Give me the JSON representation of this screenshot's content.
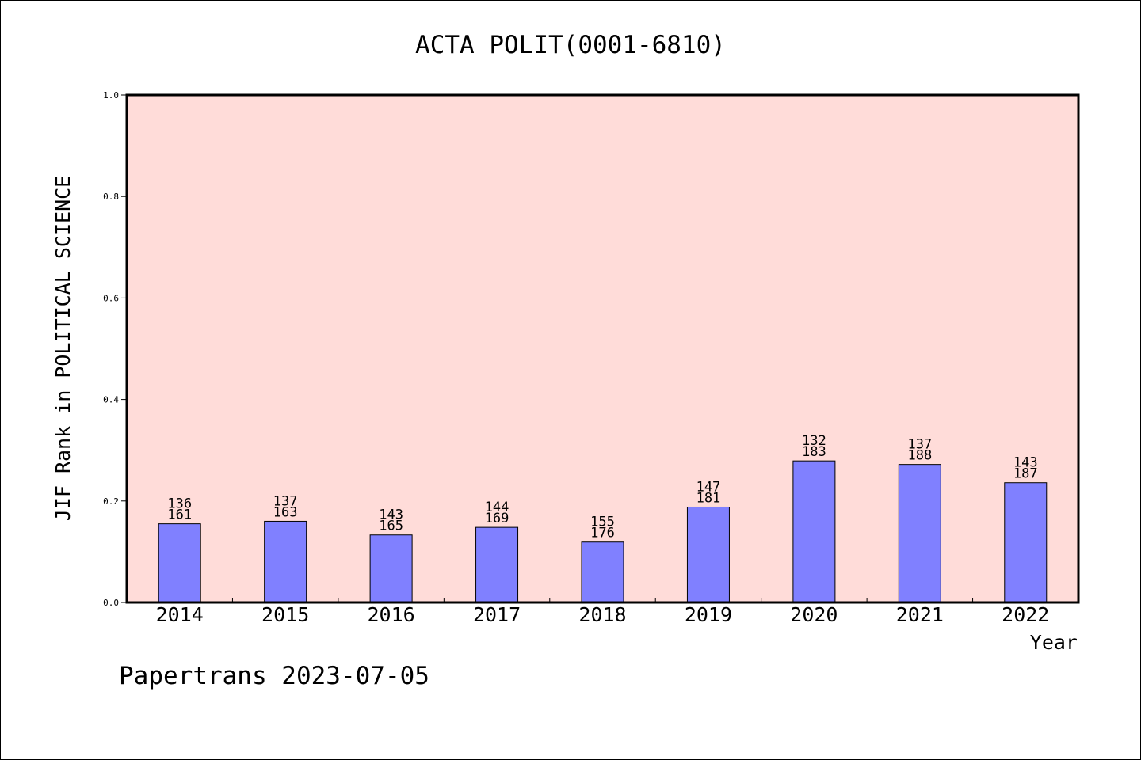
{
  "chart_data": {
    "type": "bar",
    "title": "ACTA POLIT(0001-6810)",
    "xlabel": "Year",
    "ylabel": "JIF Rank in POLITICAL SCIENCE",
    "ylim": [
      0,
      1.0
    ],
    "yticks": [
      "0.0",
      "0.2",
      "0.4",
      "0.6",
      "0.8",
      "1.0"
    ],
    "categories": [
      "2014",
      "2015",
      "2016",
      "2017",
      "2018",
      "2019",
      "2020",
      "2021",
      "2022"
    ],
    "values": [
      0.155,
      0.16,
      0.133,
      0.148,
      0.119,
      0.188,
      0.279,
      0.272,
      0.236
    ],
    "bar_labels": [
      {
        "rank": "136",
        "total": "161"
      },
      {
        "rank": "137",
        "total": "163"
      },
      {
        "rank": "143",
        "total": "165"
      },
      {
        "rank": "144",
        "total": "169"
      },
      {
        "rank": "155",
        "total": "176"
      },
      {
        "rank": "147",
        "total": "181"
      },
      {
        "rank": "132",
        "total": "183"
      },
      {
        "rank": "137",
        "total": "188"
      },
      {
        "rank": "143",
        "total": "187"
      }
    ],
    "colors": {
      "bar": "#8080ff",
      "plot_background": "#ffdcd9",
      "axis": "#000000"
    },
    "grid": false,
    "legend": "none"
  },
  "footer": {
    "text": "Papertrans 2023-07-05"
  }
}
